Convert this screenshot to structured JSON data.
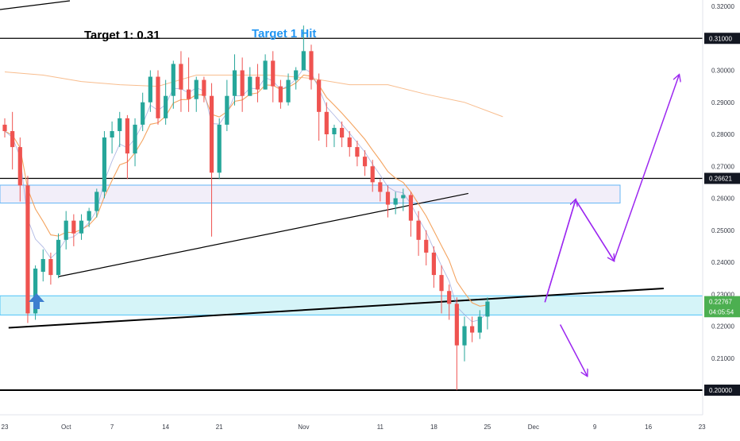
{
  "chart_data": {
    "type": "candlestick",
    "annotations": {
      "target_text": "Target 1: 0.31",
      "target_hit_text": "Target 1 Hit"
    },
    "price_axis": {
      "min": 0.195,
      "max": 0.323,
      "ticks": [
        "0.32000",
        "0.31000",
        "0.30000",
        "0.29000",
        "0.28000",
        "0.27000",
        "0.26000",
        "0.25000",
        "0.24000",
        "0.23000",
        "0.22000",
        "0.21000",
        "0.20000"
      ]
    },
    "price_labels": [
      {
        "value": 0.31,
        "text": "0.31000",
        "style": "dark"
      },
      {
        "value": 0.26621,
        "text": "0.26621",
        "style": "dark"
      },
      {
        "value": 0.22767,
        "text": "0.22767",
        "style": "green"
      },
      {
        "value": 0.22453,
        "text": "04:05:54",
        "style": "green"
      },
      {
        "value": 0.2,
        "text": "0.20000",
        "style": "dark"
      }
    ],
    "date_axis": [
      {
        "label": "23",
        "i": 0
      },
      {
        "label": "Oct",
        "i": 8
      },
      {
        "label": "7",
        "i": 14
      },
      {
        "label": "14",
        "i": 21
      },
      {
        "label": "21",
        "i": 28
      },
      {
        "label": "Nov",
        "i": 39
      },
      {
        "label": "11",
        "i": 49
      },
      {
        "label": "18",
        "i": 56
      },
      {
        "label": "25",
        "i": 63
      },
      {
        "label": "Dec",
        "i": 69
      },
      {
        "label": "9",
        "i": 77
      },
      {
        "label": "16",
        "i": 84
      },
      {
        "label": "23",
        "i": 91
      }
    ],
    "colors": {
      "up": "#26a69a",
      "down": "#ef5350",
      "ema_fast": "#f4a460",
      "ema_slow": "#f7b27a",
      "projection": "#9c27f0",
      "zone_fill": "#b2ebf2",
      "zone_border": "#4fc3f7",
      "resistance_fill": "#ede7f6",
      "resistance_border": "#64b5f6",
      "target_hit": "#2196f3",
      "arrow": "#3d7ecf"
    },
    "horizontal_levels": [
      0.31,
      0.26621,
      0.2
    ],
    "support_zone": [
      0.2235,
      0.2295
    ],
    "resistance_zone": [
      0.2585,
      0.2641
    ],
    "trendlines": [
      {
        "from": [
          0.5,
          0.2195
        ],
        "to": [
          86,
          0.2318
        ],
        "width": 2
      },
      {
        "from": [
          7,
          0.2355
        ],
        "to": [
          60.5,
          0.2615
        ],
        "width": 1.2
      }
    ],
    "projection_paths": [
      [
        [
          70.5,
          0.2275
        ],
        [
          74.5,
          0.2595
        ],
        [
          79.5,
          0.2405
        ],
        [
          88,
          0.2985
        ]
      ],
      [
        [
          72.5,
          0.2205
        ],
        [
          76,
          0.2045
        ]
      ]
    ],
    "slow_ma": [
      [
        0,
        0.2995
      ],
      [
        5,
        0.2985
      ],
      [
        10,
        0.2965
      ],
      [
        15,
        0.2955
      ],
      [
        20,
        0.295
      ],
      [
        25,
        0.2985
      ],
      [
        30,
        0.2985
      ],
      [
        35,
        0.2985
      ],
      [
        40,
        0.2975
      ],
      [
        45,
        0.2955
      ],
      [
        50,
        0.2955
      ],
      [
        55,
        0.2925
      ],
      [
        60,
        0.29
      ],
      [
        65,
        0.2855
      ]
    ],
    "candles": [
      [
        0.283,
        0.281,
        0.279,
        0.285
      ],
      [
        0.281,
        0.276,
        0.269,
        0.287
      ],
      [
        0.276,
        0.264,
        0.259,
        0.279
      ],
      [
        0.264,
        0.224,
        0.221,
        0.267
      ],
      [
        0.224,
        0.238,
        0.222,
        0.239
      ],
      [
        0.237,
        0.241,
        0.234,
        0.244
      ],
      [
        0.241,
        0.236,
        0.233,
        0.243
      ],
      [
        0.236,
        0.247,
        0.235,
        0.249
      ],
      [
        0.247,
        0.253,
        0.244,
        0.256
      ],
      [
        0.253,
        0.249,
        0.245,
        0.255
      ],
      [
        0.249,
        0.253,
        0.247,
        0.255
      ],
      [
        0.253,
        0.256,
        0.251,
        0.257
      ],
      [
        0.256,
        0.262,
        0.254,
        0.263
      ],
      [
        0.262,
        0.279,
        0.26,
        0.281
      ],
      [
        0.279,
        0.281,
        0.274,
        0.284
      ],
      [
        0.281,
        0.285,
        0.276,
        0.287
      ],
      [
        0.285,
        0.274,
        0.266,
        0.286
      ],
      [
        0.274,
        0.283,
        0.27,
        0.285
      ],
      [
        0.283,
        0.29,
        0.281,
        0.293
      ],
      [
        0.29,
        0.298,
        0.287,
        0.3
      ],
      [
        0.298,
        0.285,
        0.283,
        0.3
      ],
      [
        0.285,
        0.292,
        0.283,
        0.297
      ],
      [
        0.292,
        0.302,
        0.288,
        0.303
      ],
      [
        0.302,
        0.294,
        0.287,
        0.306
      ],
      [
        0.294,
        0.291,
        0.287,
        0.304
      ],
      [
        0.291,
        0.297,
        0.287,
        0.298
      ],
      [
        0.297,
        0.292,
        0.29,
        0.298
      ],
      [
        0.292,
        0.268,
        0.248,
        0.296
      ],
      [
        0.268,
        0.283,
        0.266,
        0.285
      ],
      [
        0.283,
        0.292,
        0.281,
        0.297
      ],
      [
        0.292,
        0.3,
        0.289,
        0.305
      ],
      [
        0.3,
        0.292,
        0.287,
        0.304
      ],
      [
        0.292,
        0.298,
        0.292,
        0.301
      ],
      [
        0.298,
        0.294,
        0.29,
        0.302
      ],
      [
        0.294,
        0.303,
        0.294,
        0.305
      ],
      [
        0.303,
        0.295,
        0.29,
        0.306
      ],
      [
        0.295,
        0.29,
        0.288,
        0.297
      ],
      [
        0.29,
        0.297,
        0.289,
        0.299
      ],
      [
        0.297,
        0.3,
        0.294,
        0.301
      ],
      [
        0.3,
        0.306,
        0.3,
        0.314
      ],
      [
        0.306,
        0.297,
        0.294,
        0.308
      ],
      [
        0.297,
        0.287,
        0.278,
        0.299
      ],
      [
        0.287,
        0.28,
        0.276,
        0.29
      ],
      [
        0.28,
        0.282,
        0.276,
        0.283
      ],
      [
        0.282,
        0.279,
        0.276,
        0.284
      ],
      [
        0.279,
        0.276,
        0.273,
        0.281
      ],
      [
        0.276,
        0.273,
        0.27,
        0.278
      ],
      [
        0.273,
        0.27,
        0.267,
        0.275
      ],
      [
        0.27,
        0.265,
        0.262,
        0.272
      ],
      [
        0.265,
        0.262,
        0.259,
        0.266
      ],
      [
        0.262,
        0.258,
        0.254,
        0.264
      ],
      [
        0.258,
        0.26,
        0.255,
        0.262
      ],
      [
        0.26,
        0.261,
        0.256,
        0.263
      ],
      [
        0.261,
        0.253,
        0.248,
        0.262
      ],
      [
        0.253,
        0.247,
        0.242,
        0.256
      ],
      [
        0.247,
        0.243,
        0.239,
        0.25
      ],
      [
        0.243,
        0.236,
        0.232,
        0.245
      ],
      [
        0.236,
        0.231,
        0.224,
        0.239
      ],
      [
        0.231,
        0.227,
        0.222,
        0.233
      ],
      [
        0.227,
        0.214,
        0.2,
        0.229
      ],
      [
        0.214,
        0.22,
        0.209,
        0.223
      ],
      [
        0.22,
        0.218,
        0.215,
        0.223
      ],
      [
        0.218,
        0.223,
        0.216,
        0.225
      ],
      [
        0.223,
        0.2277,
        0.219,
        0.229
      ]
    ]
  }
}
